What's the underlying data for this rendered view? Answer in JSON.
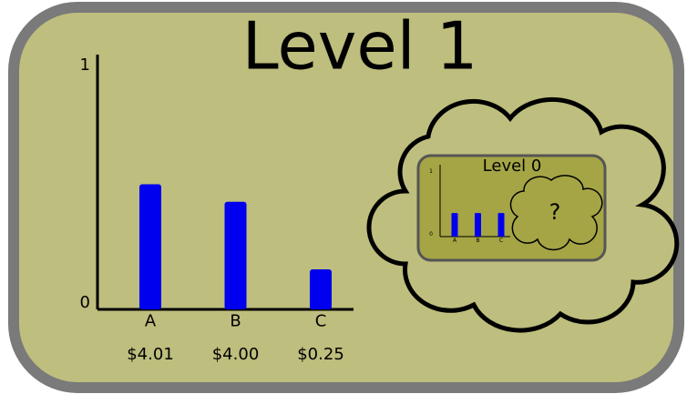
{
  "chart_data": [
    {
      "type": "bar",
      "title": "Level 1",
      "categories": [
        "A",
        "B",
        "C"
      ],
      "price_labels": [
        "$4.01",
        "$4.00",
        "$0.25"
      ],
      "values": [
        0.5,
        0.43,
        0.16
      ],
      "color": "#0000ee",
      "ylim": [
        0,
        1
      ],
      "yticks": [
        0,
        1
      ]
    },
    {
      "type": "bar",
      "title": "Level 0",
      "categories": [
        "A",
        "B",
        "C"
      ],
      "values": [
        0.35,
        0.35,
        0.35
      ],
      "color": "#0000ee",
      "ylim": [
        0,
        1
      ],
      "yticks": [
        0,
        1
      ],
      "annotation": "?"
    }
  ]
}
